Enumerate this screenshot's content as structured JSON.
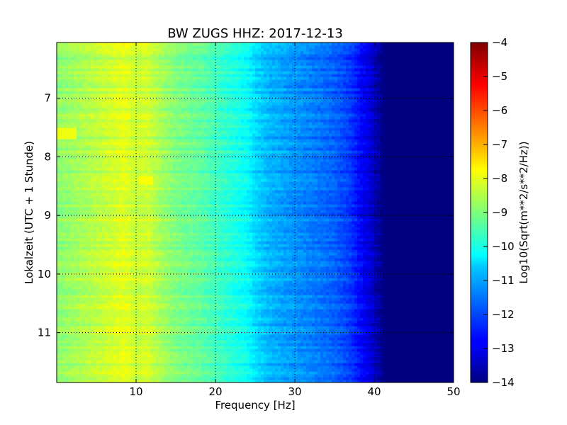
{
  "chart_data": {
    "type": "heatmap",
    "title": "BW ZUGS HHZ: 2017-12-13",
    "xlabel": "Frequency [Hz]",
    "ylabel": "Lokalzeit (UTC + 1 Stunde)",
    "xlim": [
      0,
      50
    ],
    "ylim": [
      11.85,
      6.05
    ],
    "y_inverted": true,
    "x_ticks": [
      10,
      20,
      30,
      40,
      50
    ],
    "y_ticks": [
      7,
      8,
      9,
      10,
      11
    ],
    "grid": true,
    "colormap": "jet",
    "colorbar": {
      "label": "Log10(Sqrt(m**2/s**2/Hz))",
      "range": [
        -14,
        -4
      ],
      "ticks": [
        -4,
        -5,
        -6,
        -7,
        -8,
        -9,
        -10,
        -11,
        -12,
        -13,
        -14
      ]
    },
    "frequency_profile": {
      "frequency_hz": [
        0,
        2,
        5,
        7,
        8.5,
        10,
        11.5,
        13,
        15,
        18,
        20,
        22,
        24,
        25,
        27,
        30,
        33,
        35,
        37,
        38.5,
        40,
        41,
        42,
        45,
        50
      ],
      "log10_amplitude": [
        -8.9,
        -8.7,
        -8.4,
        -8.2,
        -8.0,
        -8.3,
        -8.2,
        -8.6,
        -9.0,
        -9.3,
        -9.6,
        -9.9,
        -10.2,
        -10.6,
        -11.0,
        -11.3,
        -11.6,
        -11.8,
        -12.2,
        -12.8,
        -13.3,
        -13.9,
        -14.0,
        -14.0,
        -14.0
      ]
    },
    "features": [
      {
        "time_h": 7.6,
        "description_values": [
          0,
          2.5
        ],
        "log10_amplitude": -7.9
      },
      {
        "time_h": 8.4,
        "description_values": [
          10.5,
          12
        ],
        "log10_amplitude": -7.8
      }
    ]
  }
}
